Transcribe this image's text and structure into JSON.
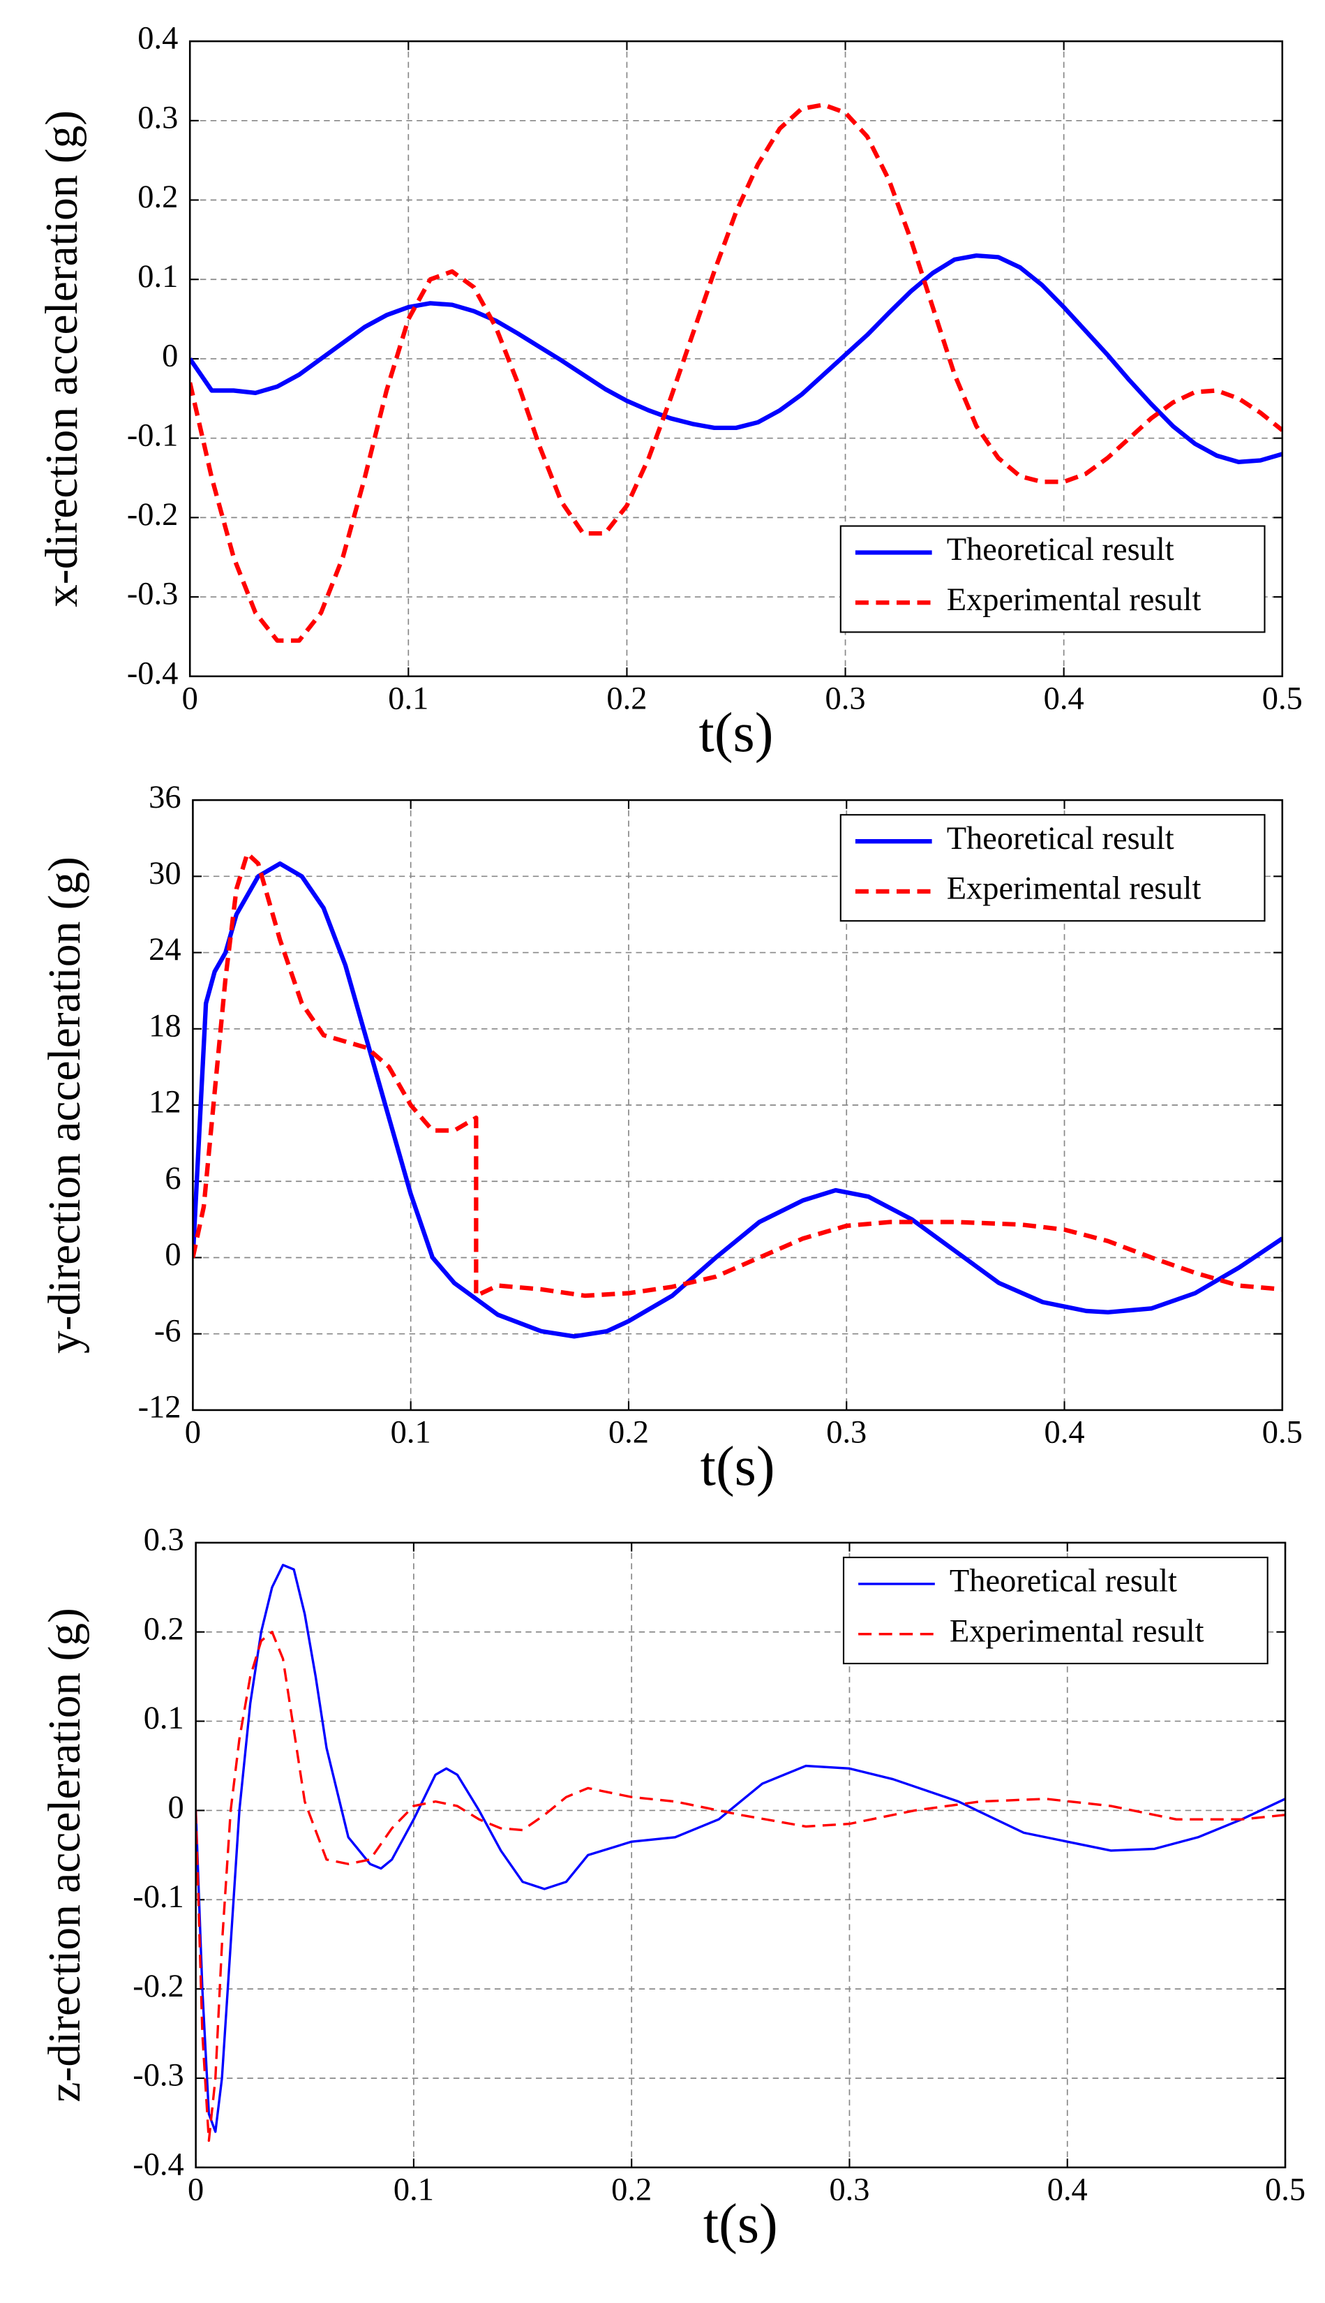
{
  "chart_data": [
    {
      "type": "line",
      "ylabel": "x-direction acceleration (g)",
      "xlabel": "t(s)",
      "xlim": [
        0,
        0.5
      ],
      "xticks": [
        0,
        0.1,
        0.2,
        0.3,
        0.4,
        0.5
      ],
      "ylim": [
        -0.4,
        0.4
      ],
      "yticks": [
        -0.4,
        -0.3,
        -0.2,
        -0.1,
        0,
        0.1,
        0.2,
        0.3,
        0.4
      ],
      "grid": true,
      "legend": "lower right",
      "x": [
        0,
        0.01,
        0.02,
        0.03,
        0.04,
        0.05,
        0.06,
        0.07,
        0.08,
        0.09,
        0.1,
        0.11,
        0.12,
        0.13,
        0.14,
        0.15,
        0.16,
        0.17,
        0.18,
        0.19,
        0.2,
        0.21,
        0.22,
        0.23,
        0.24,
        0.25,
        0.26,
        0.27,
        0.28,
        0.29,
        0.3,
        0.31,
        0.32,
        0.33,
        0.34,
        0.35,
        0.36,
        0.37,
        0.38,
        0.39,
        0.4,
        0.41,
        0.42,
        0.43,
        0.44,
        0.45,
        0.46,
        0.47,
        0.48,
        0.49,
        0.5
      ],
      "series": [
        {
          "name": "Theoretical result",
          "color": "#0000ff",
          "linestyle": "solid",
          "linewidth": 3,
          "values": [
            0,
            -0.04,
            -0.04,
            -0.043,
            -0.035,
            -0.02,
            0,
            0.02,
            0.04,
            0.055,
            0.065,
            0.07,
            0.068,
            0.06,
            0.048,
            0.032,
            0.015,
            -0.002,
            -0.02,
            -0.038,
            -0.053,
            -0.065,
            -0.075,
            -0.082,
            -0.087,
            -0.087,
            -0.08,
            -0.065,
            -0.045,
            -0.02,
            0.005,
            0.03,
            0.058,
            0.085,
            0.108,
            0.125,
            0.13,
            0.128,
            0.115,
            0.093,
            0.065,
            0.035,
            0.005,
            -0.027,
            -0.057,
            -0.085,
            -0.107,
            -0.122,
            -0.13,
            -0.128,
            -0.12
          ]
        },
        {
          "name": "Experimental result",
          "color": "#ff0000",
          "linestyle": "dashed",
          "linewidth": 3,
          "values": [
            -0.03,
            -0.15,
            -0.25,
            -0.32,
            -0.355,
            -0.355,
            -0.32,
            -0.25,
            -0.15,
            -0.04,
            0.05,
            0.1,
            0.11,
            0.09,
            0.04,
            -0.03,
            -0.11,
            -0.18,
            -0.22,
            -0.22,
            -0.185,
            -0.125,
            -0.05,
            0.03,
            0.11,
            0.185,
            0.245,
            0.29,
            0.315,
            0.32,
            0.31,
            0.28,
            0.225,
            0.15,
            0.065,
            -0.02,
            -0.085,
            -0.125,
            -0.148,
            -0.155,
            -0.155,
            -0.145,
            -0.125,
            -0.1,
            -0.075,
            -0.055,
            -0.042,
            -0.04,
            -0.05,
            -0.068,
            -0.09
          ]
        }
      ]
    },
    {
      "type": "line",
      "ylabel": "y-direction acceleration (g)",
      "xlabel": "t(s)",
      "xlim": [
        0,
        0.5
      ],
      "xticks": [
        0,
        0.1,
        0.2,
        0.3,
        0.4,
        0.5
      ],
      "ylim": [
        -12,
        36
      ],
      "yticks": [
        -12,
        -6,
        0,
        6,
        12,
        18,
        24,
        30,
        36
      ],
      "grid": true,
      "legend": "upper right",
      "series": [
        {
          "name": "Theoretical result",
          "color": "#0000ff",
          "linestyle": "solid",
          "linewidth": 3,
          "x": [
            0,
            0.003,
            0.006,
            0.01,
            0.015,
            0.02,
            0.03,
            0.04,
            0.05,
            0.06,
            0.07,
            0.08,
            0.09,
            0.1,
            0.11,
            0.12,
            0.14,
            0.16,
            0.175,
            0.19,
            0.2,
            0.22,
            0.24,
            0.26,
            0.28,
            0.295,
            0.31,
            0.33,
            0.35,
            0.37,
            0.39,
            0.41,
            0.42,
            0.44,
            0.46,
            0.48,
            0.5
          ],
          "values": [
            0,
            10,
            20,
            22.5,
            24,
            27,
            30,
            31,
            30,
            27.5,
            23,
            17,
            11,
            5,
            0,
            -2,
            -4.5,
            -5.8,
            -6.2,
            -5.8,
            -5,
            -3,
            0,
            2.8,
            4.5,
            5.3,
            4.8,
            3,
            0.5,
            -2,
            -3.5,
            -4.2,
            -4.3,
            -4,
            -2.8,
            -0.8,
            1.5
          ]
        },
        {
          "name": "Experimental result",
          "color": "#ff0000",
          "linestyle": "dashed",
          "linewidth": 3,
          "x": [
            0,
            0.005,
            0.01,
            0.015,
            0.02,
            0.025,
            0.03,
            0.04,
            0.05,
            0.06,
            0.07,
            0.08,
            0.09,
            0.1,
            0.11,
            0.12,
            0.13,
            0.13,
            0.14,
            0.16,
            0.18,
            0.2,
            0.22,
            0.24,
            0.26,
            0.28,
            0.3,
            0.32,
            0.35,
            0.38,
            0.4,
            0.42,
            0.44,
            0.46,
            0.48,
            0.5
          ],
          "values": [
            0,
            4,
            13,
            22,
            29,
            31.8,
            31,
            25,
            20,
            17.5,
            17,
            16.5,
            15,
            12,
            10,
            10,
            11,
            -3,
            -2.2,
            -2.5,
            -3,
            -2.8,
            -2.3,
            -1.5,
            0,
            1.5,
            2.5,
            2.8,
            2.8,
            2.6,
            2.2,
            1.3,
            0,
            -1.2,
            -2.2,
            -2.5
          ]
        }
      ]
    },
    {
      "type": "line",
      "ylabel": "z-direction acceleration (g)",
      "xlabel": "t(s)",
      "xlim": [
        0,
        0.5
      ],
      "xticks": [
        0,
        0.1,
        0.2,
        0.3,
        0.4,
        0.5
      ],
      "ylim": [
        -0.4,
        0.3
      ],
      "yticks": [
        -0.4,
        -0.3,
        -0.2,
        -0.1,
        0,
        0.1,
        0.2,
        0.3
      ],
      "grid": true,
      "legend": "upper right",
      "series": [
        {
          "name": "Theoretical result",
          "color": "#0000ff",
          "linestyle": "solid",
          "linewidth": 1.6,
          "x": [
            0,
            0.003,
            0.006,
            0.009,
            0.012,
            0.016,
            0.02,
            0.025,
            0.03,
            0.035,
            0.04,
            0.045,
            0.05,
            0.055,
            0.06,
            0.07,
            0.08,
            0.085,
            0.09,
            0.1,
            0.11,
            0.115,
            0.12,
            0.13,
            0.14,
            0.15,
            0.16,
            0.17,
            0.18,
            0.2,
            0.22,
            0.24,
            0.26,
            0.28,
            0.3,
            0.32,
            0.35,
            0.38,
            0.42,
            0.44,
            0.46,
            0.48,
            0.5
          ],
          "values": [
            0,
            -0.2,
            -0.34,
            -0.36,
            -0.3,
            -0.15,
            0,
            0.12,
            0.2,
            0.25,
            0.275,
            0.27,
            0.22,
            0.15,
            0.07,
            -0.03,
            -0.06,
            -0.065,
            -0.055,
            -0.01,
            0.04,
            0.047,
            0.04,
            0,
            -0.045,
            -0.08,
            -0.088,
            -0.08,
            -0.05,
            -0.035,
            -0.03,
            -0.01,
            0.03,
            0.05,
            0.047,
            0.035,
            0.01,
            -0.025,
            -0.045,
            -0.043,
            -0.03,
            -0.01,
            0.013
          ]
        },
        {
          "name": "Experimental result",
          "color": "#ff0000",
          "linestyle": "dashed",
          "linewidth": 1.6,
          "x": [
            0,
            0.003,
            0.006,
            0.009,
            0.012,
            0.016,
            0.02,
            0.025,
            0.03,
            0.035,
            0.04,
            0.045,
            0.05,
            0.06,
            0.07,
            0.08,
            0.09,
            0.1,
            0.11,
            0.12,
            0.13,
            0.14,
            0.15,
            0.16,
            0.17,
            0.18,
            0.2,
            0.22,
            0.25,
            0.28,
            0.3,
            0.33,
            0.36,
            0.39,
            0.42,
            0.45,
            0.48,
            0.5
          ],
          "values": [
            0,
            -0.25,
            -0.37,
            -0.3,
            -0.15,
            0,
            0.08,
            0.15,
            0.19,
            0.2,
            0.17,
            0.09,
            0.01,
            -0.055,
            -0.06,
            -0.055,
            -0.02,
            0.005,
            0.01,
            0.005,
            -0.01,
            -0.02,
            -0.022,
            -0.005,
            0.015,
            0.025,
            0.015,
            0.01,
            -0.005,
            -0.018,
            -0.015,
            0,
            0.01,
            0.013,
            0.005,
            -0.01,
            -0.01,
            -0.005
          ]
        }
      ]
    }
  ]
}
